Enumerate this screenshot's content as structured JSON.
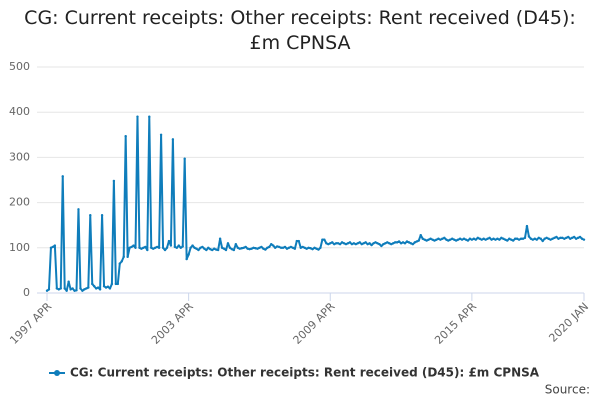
{
  "chart_data": {
    "type": "line",
    "title": "CG: Current receipts: Other receipts: Rent received (D45): £m CPNSA",
    "source": "Source:",
    "categories": [
      "1997 APR",
      null,
      null,
      null,
      null,
      null,
      null,
      null,
      null,
      null,
      null,
      null,
      null,
      null,
      null,
      null,
      null,
      null,
      null,
      null,
      null,
      null,
      null,
      null,
      null,
      null,
      null,
      null,
      null,
      null,
      null,
      null,
      null,
      null,
      null,
      null,
      null,
      null,
      null,
      null,
      null,
      null,
      null,
      null,
      null,
      null,
      null,
      null,
      null,
      null,
      null,
      null,
      null,
      null,
      null,
      null,
      null,
      null,
      null,
      null,
      null,
      null,
      null,
      null,
      null,
      null,
      null,
      null,
      null,
      null,
      null,
      null,
      "2003 APR",
      null,
      null,
      null,
      null,
      null,
      null,
      null,
      null,
      null,
      null,
      null,
      null,
      null,
      null,
      null,
      null,
      null,
      null,
      null,
      null,
      null,
      null,
      null,
      null,
      null,
      null,
      null,
      null,
      null,
      null,
      null,
      null,
      null,
      null,
      null,
      null,
      null,
      null,
      null,
      null,
      null,
      null,
      null,
      null,
      null,
      null,
      null,
      null,
      null,
      null,
      null,
      null,
      null,
      null,
      null,
      null,
      null,
      null,
      null,
      null,
      null,
      null,
      null,
      null,
      null,
      null,
      null,
      null,
      null,
      null,
      null,
      "2009 APR",
      null,
      null,
      null,
      null,
      null,
      null,
      null,
      null,
      null,
      null,
      null,
      null,
      null,
      null,
      null,
      null,
      null,
      null,
      null,
      null,
      null,
      null,
      null,
      null,
      null,
      null,
      null,
      null,
      null,
      null,
      null,
      null,
      null,
      null,
      null,
      null,
      null,
      null,
      null,
      null,
      null,
      null,
      null,
      null,
      null,
      null,
      null,
      null,
      null,
      null,
      null,
      null,
      null,
      null,
      null,
      null,
      null,
      null,
      null,
      null,
      null,
      null,
      null,
      null,
      null,
      null,
      null,
      null,
      null,
      null,
      null,
      "2015 APR",
      null,
      null,
      null,
      null,
      null,
      null,
      null,
      null,
      null,
      null,
      null,
      null,
      null,
      null,
      null,
      null,
      null,
      null,
      null,
      null,
      null,
      null,
      null,
      null,
      null,
      null,
      null,
      null,
      null,
      null,
      null,
      null,
      null,
      null,
      null,
      null,
      null,
      null,
      null,
      null,
      null,
      null,
      null,
      null,
      null,
      null,
      null,
      null,
      null,
      null,
      null,
      null,
      null,
      null,
      null,
      null,
      "2020 JAN"
    ],
    "series": [
      {
        "name": "CG: Current receipts: Other receipts: Rent received (D45): £m CPNSA",
        "color": "#0f7dbb",
        "values": [
          5,
          8,
          100,
          102,
          105,
          10,
          8,
          10,
          258,
          10,
          5,
          25,
          8,
          10,
          5,
          6,
          185,
          10,
          5,
          8,
          10,
          12,
          172,
          20,
          15,
          10,
          12,
          8,
          172,
          15,
          12,
          14,
          10,
          20,
          248,
          20,
          20,
          65,
          70,
          80,
          347,
          80,
          100,
          102,
          105,
          100,
          390,
          100,
          98,
          100,
          102,
          95,
          390,
          100,
          98,
          100,
          102,
          100,
          350,
          100,
          95,
          100,
          115,
          105,
          340,
          102,
          100,
          105,
          100,
          103,
          297,
          75,
          85,
          100,
          105,
          100,
          98,
          95,
          100,
          102,
          98,
          95,
          100,
          97,
          95,
          98,
          96,
          95,
          120,
          100,
          98,
          95,
          110,
          100,
          97,
          95,
          108,
          100,
          98,
          99,
          100,
          102,
          98,
          97,
          98,
          100,
          99,
          98,
          100,
          102,
          98,
          96,
          100,
          102,
          108,
          105,
          100,
          103,
          102,
          100,
          100,
          102,
          98,
          100,
          102,
          100,
          98,
          115,
          115,
          100,
          102,
          100,
          98,
          100,
          99,
          97,
          100,
          98,
          96,
          100,
          118,
          118,
          110,
          108,
          110,
          112,
          108,
          110,
          110,
          108,
          112,
          110,
          108,
          110,
          112,
          108,
          110,
          108,
          110,
          112,
          108,
          110,
          112,
          108,
          110,
          106,
          110,
          112,
          110,
          108,
          104,
          108,
          110,
          112,
          110,
          108,
          110,
          112,
          112,
          114,
          110,
          112,
          110,
          114,
          112,
          110,
          108,
          112,
          114,
          116,
          128,
          120,
          118,
          116,
          118,
          120,
          118,
          116,
          118,
          120,
          118,
          120,
          122,
          118,
          116,
          118,
          120,
          118,
          116,
          118,
          120,
          118,
          120,
          118,
          116,
          120,
          118,
          120,
          118,
          122,
          120,
          118,
          120,
          118,
          120,
          122,
          118,
          120,
          118,
          120,
          118,
          122,
          120,
          118,
          116,
          120,
          118,
          116,
          120,
          120,
          118,
          120,
          120,
          122,
          148,
          125,
          120,
          118,
          120,
          118,
          122,
          120,
          115,
          120,
          122,
          120,
          118,
          120,
          122,
          124,
          120,
          122,
          122,
          120,
          122,
          124,
          120,
          122,
          124,
          120,
          122,
          124,
          120,
          118
        ]
      }
    ],
    "ylim": [
      0,
      500
    ],
    "yticks": [
      0,
      100,
      200,
      300,
      400,
      500
    ],
    "grid": true,
    "legend": "bottom"
  }
}
